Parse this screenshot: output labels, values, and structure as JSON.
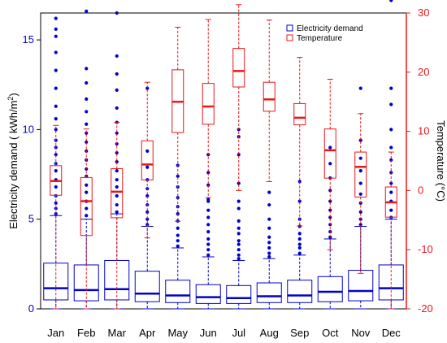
{
  "chart_data": {
    "type": "box",
    "categories": [
      "Jan",
      "Feb",
      "Mar",
      "Apr",
      "May",
      "Jun",
      "Jul",
      "Aug",
      "Sep",
      "Oct",
      "Nov",
      "Dec"
    ],
    "left_axis": {
      "label_prefix": "Electricity demand ( kWh/",
      "label_unit_base": "m",
      "label_unit_exp": "2",
      "label_suffix": ")",
      "ylim": [
        0,
        16.5
      ],
      "ticks": [
        0,
        5,
        10,
        15
      ],
      "color": "#0000cc"
    },
    "right_axis": {
      "label": "Temperature (°C)",
      "ylim": [
        -20,
        30
      ],
      "ticks": [
        -20,
        -10,
        0,
        10,
        20,
        30
      ],
      "color": "#e8171a"
    },
    "legend": {
      "position": "top-right",
      "entries": [
        {
          "label": "Electricity demand",
          "color": "#0000cc"
        },
        {
          "label": "Temperature",
          "color": "#e8171a"
        }
      ]
    },
    "series": [
      {
        "name": "Electricity demand",
        "axis": "left",
        "color": "#0000cc",
        "boxes": [
          {
            "min": 0.0,
            "q1": 0.5,
            "median": 1.15,
            "q3": 2.55,
            "max": 5.2
          },
          {
            "min": 0.0,
            "q1": 0.45,
            "median": 1.05,
            "q3": 2.45,
            "max": 5.0
          },
          {
            "min": 0.0,
            "q1": 0.5,
            "median": 1.1,
            "q3": 2.7,
            "max": 5.3
          },
          {
            "min": 0.0,
            "q1": 0.4,
            "median": 0.85,
            "q3": 2.1,
            "max": 4.6
          },
          {
            "min": 0.0,
            "q1": 0.35,
            "median": 0.75,
            "q3": 1.6,
            "max": 3.4
          },
          {
            "min": 0.0,
            "q1": 0.3,
            "median": 0.65,
            "q3": 1.35,
            "max": 2.9
          },
          {
            "min": 0.0,
            "q1": 0.3,
            "median": 0.6,
            "q3": 1.3,
            "max": 2.7
          },
          {
            "min": 0.0,
            "q1": 0.35,
            "median": 0.7,
            "q3": 1.45,
            "max": 2.8
          },
          {
            "min": 0.0,
            "q1": 0.35,
            "median": 0.75,
            "q3": 1.6,
            "max": 3.0
          },
          {
            "min": 0.0,
            "q1": 0.4,
            "median": 0.95,
            "q3": 1.8,
            "max": 3.9
          },
          {
            "min": 0.0,
            "q1": 0.45,
            "median": 1.0,
            "q3": 2.15,
            "max": 4.6
          },
          {
            "min": 0.0,
            "q1": 0.5,
            "median": 1.15,
            "q3": 2.45,
            "max": 5.0
          }
        ],
        "outliers": [
          [
            5.3,
            5.6,
            5.9,
            6.3,
            6.8,
            7.2,
            7.7,
            8.1,
            8.6,
            9.0,
            9.4,
            10.0,
            10.6,
            11.3,
            12.3,
            13.3,
            14.3,
            15.2,
            15.6,
            16.2
          ],
          [
            5.2,
            5.6,
            6.0,
            6.5,
            6.9,
            7.4,
            7.8,
            8.3,
            8.8,
            9.3,
            9.8,
            10.3,
            11.0,
            11.7,
            12.6,
            13.4,
            16.6
          ],
          [
            5.4,
            5.8,
            6.3,
            6.8,
            7.2,
            7.7,
            8.2,
            8.7,
            9.2,
            9.8,
            10.4,
            11.2,
            12.2,
            13.1,
            14.1,
            16.5
          ],
          [
            4.7,
            5.0,
            5.4,
            5.8,
            6.3,
            6.7,
            7.2,
            7.9,
            8.8,
            12.3
          ],
          [
            3.5,
            3.8,
            4.1,
            4.5,
            4.9,
            5.3,
            5.7,
            6.2,
            6.8,
            7.4,
            8.0
          ],
          [
            3.0,
            3.3,
            3.6,
            3.9,
            4.3,
            4.7,
            5.1,
            5.5,
            6.0,
            6.1,
            6.9,
            7.6,
            8.6
          ],
          [
            2.8,
            3.0,
            3.3,
            3.6,
            3.8,
            4.2,
            4.5,
            4.9,
            5.6,
            6.0,
            7.0,
            8.6,
            9.6,
            10.0
          ],
          [
            2.9,
            3.1,
            3.4,
            3.7,
            4.0,
            4.5,
            5.0,
            5.8,
            6.5
          ],
          [
            3.1,
            3.4,
            3.6,
            3.9,
            4.2,
            4.6,
            5.0,
            6.0,
            7.1
          ],
          [
            4.0,
            4.3,
            4.7,
            5.1,
            5.5,
            6.0,
            6.6,
            7.3,
            8.1,
            9.0
          ],
          [
            4.7,
            5.0,
            5.4,
            5.9,
            6.4,
            7.0,
            7.7,
            8.4,
            9.4,
            12.3
          ],
          [
            5.1,
            5.5,
            6.0,
            6.5,
            7.0,
            7.6,
            8.3,
            9.0,
            10.0,
            11.4,
            12.3,
            17.2
          ]
        ]
      },
      {
        "name": "Temperature",
        "axis": "right",
        "color": "#e8171a",
        "boxes": [
          {
            "min": -20.0,
            "q1": -0.8,
            "median": 1.6,
            "q3": 4.2,
            "max": 11.0
          },
          {
            "min": -20.0,
            "q1": -7.6,
            "median": -1.8,
            "q3": 2.2,
            "max": 10.4
          },
          {
            "min": -20.0,
            "q1": -4.6,
            "median": -0.2,
            "q3": 3.7,
            "max": 11.5
          },
          {
            "min": -8.0,
            "q1": 1.8,
            "median": 4.4,
            "q3": 8.4,
            "max": 18.3
          },
          {
            "min": -5.2,
            "q1": 9.8,
            "median": 15.0,
            "q3": 20.4,
            "max": 27.6
          },
          {
            "min": -1.2,
            "q1": 11.2,
            "median": 14.2,
            "q3": 18.1,
            "max": 28.9
          },
          {
            "min": 0.0,
            "q1": 17.5,
            "median": 20.2,
            "q3": 24.0,
            "max": 31.4
          },
          {
            "min": 1.5,
            "q1": 13.4,
            "median": 15.4,
            "q3": 18.3,
            "max": 28.8
          },
          {
            "min": -6.0,
            "q1": 11.1,
            "median": 12.3,
            "q3": 14.7,
            "max": 22.5
          },
          {
            "min": -10.0,
            "q1": 2.1,
            "median": 6.8,
            "q3": 10.4,
            "max": 18.8
          },
          {
            "min": -14.0,
            "q1": -1.1,
            "median": 4.0,
            "q3": 6.5,
            "max": 13.0
          },
          {
            "min": -20.0,
            "q1": -4.5,
            "median": -2.0,
            "q3": 0.6,
            "max": 6.5
          }
        ]
      }
    ]
  }
}
